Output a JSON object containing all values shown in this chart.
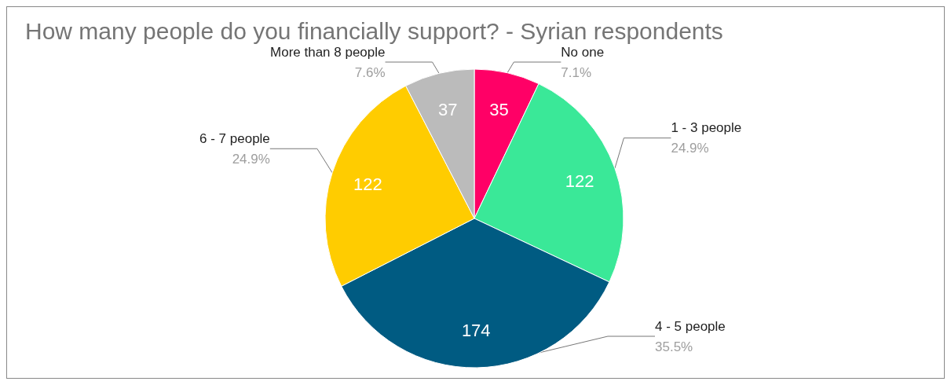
{
  "chart_data": {
    "type": "pie",
    "title": "How many people do you financially support? - Syrian respondents",
    "categories": [
      "No one",
      "1 - 3 people",
      "4 - 5 people",
      "6 - 7 people",
      "More than 8 people"
    ],
    "values": [
      7.1,
      24.9,
      35.5,
      24.9,
      7.6
    ],
    "colors": [
      "#ff0066",
      "#3ae898",
      "#005b82",
      "#ffcc00",
      "#bbbbbb"
    ],
    "value_labels": [
      "7.1%",
      "24.9%",
      "35.5%",
      "24.9%",
      "7.6%"
    ],
    "annotations": [
      {
        "text": "35",
        "x": "No one"
      },
      {
        "text": "122",
        "x": "1 - 3 people"
      },
      {
        "text": "174",
        "x": "4 - 5 people"
      },
      {
        "text": "122",
        "x": "6 - 7 people"
      },
      {
        "text": "37",
        "x": "More than 8 people"
      }
    ],
    "legend": false
  }
}
